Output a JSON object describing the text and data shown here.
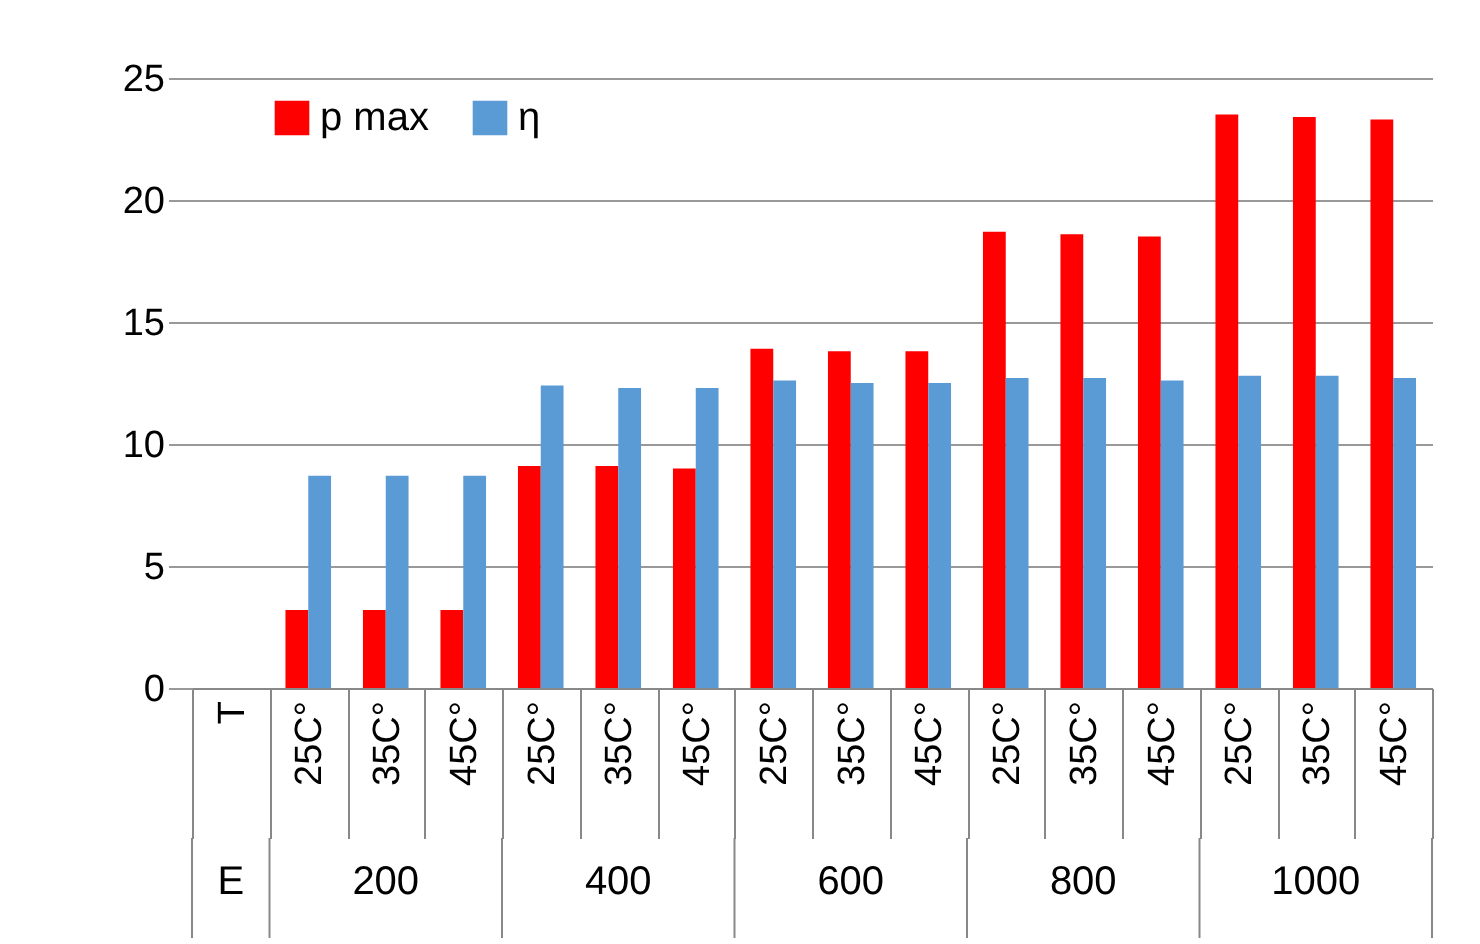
{
  "chart_data": {
    "type": "bar",
    "categories": [
      "T",
      "25C°",
      "35C°",
      "45C°",
      "25C°",
      "35C°",
      "45C°",
      "25C°",
      "35C°",
      "45C°",
      "25C°",
      "35C°",
      "45C°",
      "25C°",
      "35C°",
      "45C°"
    ],
    "series": [
      {
        "name": "p max",
        "color": "#ff0000",
        "values": [
          null,
          3.2,
          3.2,
          3.2,
          9.1,
          9.1,
          9.0,
          13.9,
          13.8,
          13.8,
          18.7,
          18.6,
          18.5,
          23.5,
          23.4,
          23.3
        ]
      },
      {
        "name": "η",
        "color": "#5b9bd5",
        "values": [
          null,
          8.7,
          8.7,
          8.7,
          12.4,
          12.3,
          12.3,
          12.6,
          12.5,
          12.5,
          12.7,
          12.7,
          12.6,
          12.8,
          12.8,
          12.7
        ]
      }
    ],
    "annotations": [
      "E",
      "200",
      "400",
      "600",
      "800",
      "1000"
    ],
    "ylim": [
      0,
      25
    ],
    "yticks": [
      0,
      5,
      10,
      15,
      20,
      25
    ],
    "grid": "y",
    "legend": "top left"
  }
}
